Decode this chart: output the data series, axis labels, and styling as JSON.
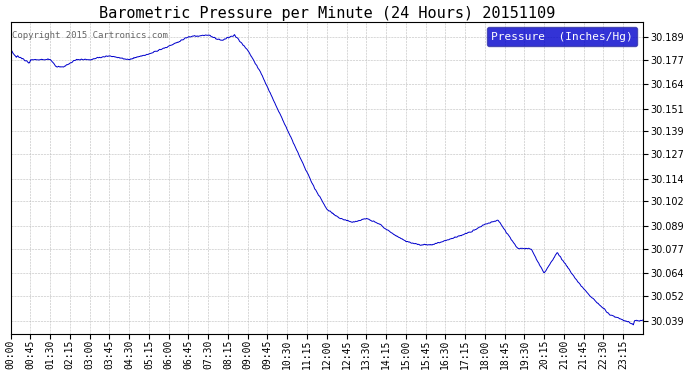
{
  "title": "Barometric Pressure per Minute (24 Hours) 20151109",
  "copyright_text": "Copyright 2015 Cartronics.com",
  "legend_label": "Pressure  (Inches/Hg)",
  "line_color": "#0000cc",
  "background_color": "#ffffff",
  "plot_bg_color": "#ffffff",
  "grid_color": "#bbbbbb",
  "legend_bg": "#0000cc",
  "legend_text_color": "#ffffff",
  "yticks": [
    30.039,
    30.052,
    30.064,
    30.077,
    30.089,
    30.102,
    30.114,
    30.127,
    30.139,
    30.151,
    30.164,
    30.177,
    30.189
  ],
  "ylim": [
    30.032,
    30.197
  ],
  "xtick_labels": [
    "00:00",
    "00:45",
    "01:30",
    "02:15",
    "03:00",
    "03:45",
    "04:30",
    "05:15",
    "06:00",
    "06:45",
    "07:30",
    "08:15",
    "09:00",
    "09:45",
    "10:30",
    "11:15",
    "12:00",
    "12:45",
    "13:30",
    "14:15",
    "15:00",
    "15:45",
    "16:30",
    "17:15",
    "18:00",
    "18:45",
    "19:30",
    "20:15",
    "21:00",
    "21:45",
    "22:30",
    "23:15"
  ],
  "title_fontsize": 11,
  "tick_fontsize": 7,
  "copyright_fontsize": 6.5,
  "legend_fontsize": 8
}
